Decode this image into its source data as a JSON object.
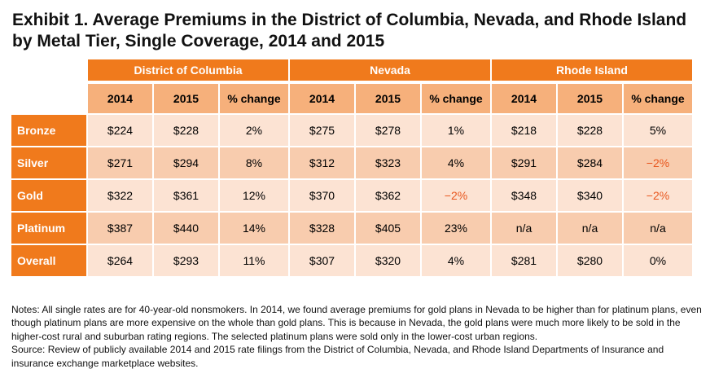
{
  "title": "Exhibit 1. Average Premiums in the District of Columbia, Nevada, and Rhode Island by Metal Tier, Single Coverage, 2014 and 2015",
  "table": {
    "states": [
      "District of Columbia",
      "Nevada",
      "Rhode Island"
    ],
    "columns": [
      "2014",
      "2015",
      "% change",
      "2014",
      "2015",
      "% change",
      "2014",
      "2015",
      "% change"
    ],
    "rows": [
      {
        "tier": "Bronze",
        "cells": [
          "$224",
          "$228",
          "2%",
          "$275",
          "$278",
          "1%",
          "$218",
          "$228",
          "5%"
        ]
      },
      {
        "tier": "Silver",
        "cells": [
          "$271",
          "$294",
          "8%",
          "$312",
          "$323",
          "4%",
          "$291",
          "$284",
          "−2%"
        ]
      },
      {
        "tier": "Gold",
        "cells": [
          "$322",
          "$361",
          "12%",
          "$370",
          "$362",
          "−2%",
          "$348",
          "$340",
          "−2%"
        ]
      },
      {
        "tier": "Platinum",
        "cells": [
          "$387",
          "$440",
          "14%",
          "$328",
          "$405",
          "23%",
          "n/a",
          "n/a",
          "n/a"
        ]
      },
      {
        "tier": "Overall",
        "cells": [
          "$264",
          "$293",
          "11%",
          "$307",
          "$320",
          "4%",
          "$281",
          "$280",
          "0%"
        ]
      }
    ]
  },
  "notes": "Notes: All single rates are for 40-year-old nonsmokers. In 2014, we found average premiums for gold plans in Nevada to be higher than for platinum plans, even though platinum plans are more expensive on the whole than gold plans. This is because in Nevada, the gold plans were much more likely to be sold in the higher-cost rural and suburban rating regions. The selected platinum plans were sold only in the lower-cost urban regions.",
  "source": "Source: Review of publicly available 2014 and 2015 rate filings from the District of Columbia, Nevada, and Rhode Island Departments of Insurance and insurance exchange marketplace websites.",
  "colors": {
    "header": "#f07a1c",
    "subheader": "#f6b07b",
    "row_light": "#fce3d3",
    "row_dark": "#f8ccae",
    "negative": "#e8571f"
  }
}
